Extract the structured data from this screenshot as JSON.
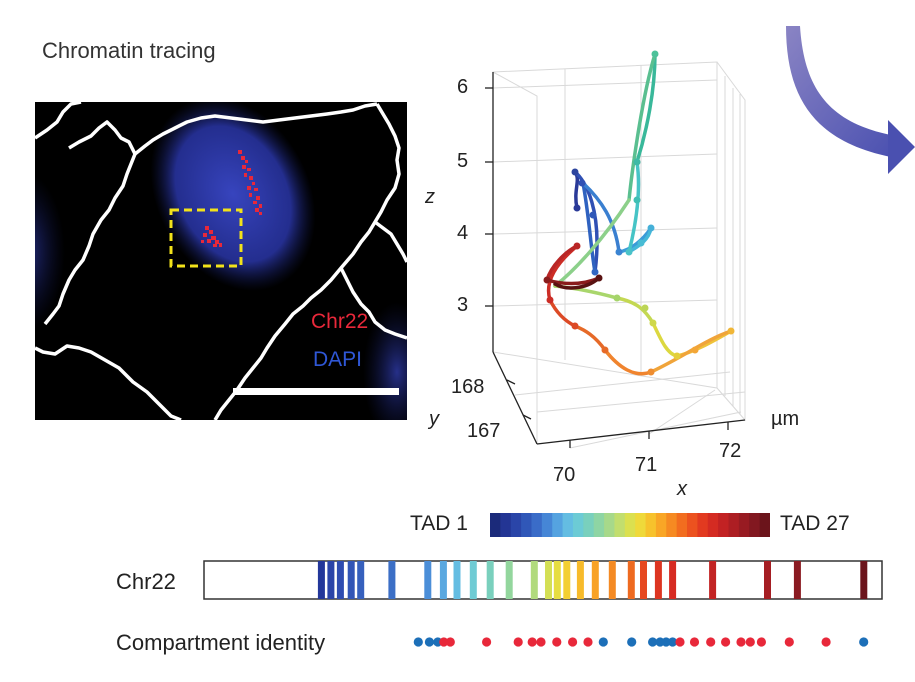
{
  "title": "Chromatin tracing",
  "microscopy": {
    "chr_label": "Chr22",
    "dapi_label": "DAPI",
    "colors": {
      "chr": "#e8283a",
      "dapi": "#2f57d6",
      "roi": "#f2e21a"
    }
  },
  "plot3d": {
    "z_ticks": [
      "6",
      "5",
      "4",
      "3"
    ],
    "y_ticks": [
      "168",
      "167"
    ],
    "x_ticks": [
      "70",
      "71",
      "72"
    ],
    "z_label": "z",
    "y_label": "y",
    "x_label": "x",
    "unit": "µm"
  },
  "colorbar": {
    "left_label": "TAD 1",
    "right_label": "TAD 27",
    "colors": [
      "#1b2a7a",
      "#233594",
      "#2a45a8",
      "#3057b8",
      "#3a6cc8",
      "#4686d6",
      "#55a3e0",
      "#64bde2",
      "#6ccbd5",
      "#79d0bd",
      "#8ed5a4",
      "#a7d98a",
      "#c2de6e",
      "#dbe04f",
      "#efd93a",
      "#f7c22c",
      "#f9a626",
      "#f68a22",
      "#f26d1f",
      "#ec521f",
      "#e23a20",
      "#d42b22",
      "#c22223",
      "#ad1e23",
      "#981b22",
      "#821820",
      "#6b141b"
    ]
  },
  "chromosome": {
    "label": "Chr22",
    "bands": [
      {
        "pos": 0.168,
        "color": "#23379a"
      },
      {
        "pos": 0.182,
        "color": "#2a44a8"
      },
      {
        "pos": 0.196,
        "color": "#2e4cb0"
      },
      {
        "pos": 0.212,
        "color": "#3256b6"
      },
      {
        "pos": 0.226,
        "color": "#3660bd"
      },
      {
        "pos": 0.272,
        "color": "#3c6fc6"
      },
      {
        "pos": 0.325,
        "color": "#4b8ed8"
      },
      {
        "pos": 0.348,
        "color": "#5aa8e0"
      },
      {
        "pos": 0.368,
        "color": "#64bde2"
      },
      {
        "pos": 0.392,
        "color": "#6fcbd4"
      },
      {
        "pos": 0.417,
        "color": "#7ad0bd"
      },
      {
        "pos": 0.445,
        "color": "#93d69d"
      },
      {
        "pos": 0.482,
        "color": "#b1da7d"
      },
      {
        "pos": 0.503,
        "color": "#d4df55"
      },
      {
        "pos": 0.516,
        "color": "#e6dd42"
      },
      {
        "pos": 0.53,
        "color": "#f3cf33"
      },
      {
        "pos": 0.55,
        "color": "#f7bb2b"
      },
      {
        "pos": 0.572,
        "color": "#f8a226"
      },
      {
        "pos": 0.597,
        "color": "#f48a23"
      },
      {
        "pos": 0.625,
        "color": "#ee6a20"
      },
      {
        "pos": 0.643,
        "color": "#e6481f"
      },
      {
        "pos": 0.665,
        "color": "#dd3521"
      },
      {
        "pos": 0.686,
        "color": "#d62b22"
      },
      {
        "pos": 0.745,
        "color": "#c22424"
      },
      {
        "pos": 0.826,
        "color": "#a51e23"
      },
      {
        "pos": 0.87,
        "color": "#8a1a21"
      },
      {
        "pos": 0.968,
        "color": "#6b141b"
      }
    ]
  },
  "compartment": {
    "label": "Compartment identity",
    "colors": {
      "A": "#e8283a",
      "B": "#1c6fb8"
    },
    "dots": [
      {
        "pos": 0.007,
        "c": "B"
      },
      {
        "pos": 0.031,
        "c": "B"
      },
      {
        "pos": 0.049,
        "c": "B"
      },
      {
        "pos": 0.062,
        "c": "A"
      },
      {
        "pos": 0.076,
        "c": "A"
      },
      {
        "pos": 0.154,
        "c": "A"
      },
      {
        "pos": 0.222,
        "c": "A"
      },
      {
        "pos": 0.252,
        "c": "A"
      },
      {
        "pos": 0.271,
        "c": "A"
      },
      {
        "pos": 0.305,
        "c": "A"
      },
      {
        "pos": 0.339,
        "c": "A"
      },
      {
        "pos": 0.372,
        "c": "A"
      },
      {
        "pos": 0.405,
        "c": "B"
      },
      {
        "pos": 0.466,
        "c": "B"
      },
      {
        "pos": 0.511,
        "c": "B"
      },
      {
        "pos": 0.527,
        "c": "B"
      },
      {
        "pos": 0.54,
        "c": "B"
      },
      {
        "pos": 0.554,
        "c": "B"
      },
      {
        "pos": 0.57,
        "c": "A"
      },
      {
        "pos": 0.601,
        "c": "A"
      },
      {
        "pos": 0.636,
        "c": "A"
      },
      {
        "pos": 0.668,
        "c": "A"
      },
      {
        "pos": 0.701,
        "c": "A"
      },
      {
        "pos": 0.721,
        "c": "A"
      },
      {
        "pos": 0.745,
        "c": "A"
      },
      {
        "pos": 0.805,
        "c": "A"
      },
      {
        "pos": 0.884,
        "c": "A"
      },
      {
        "pos": 0.965,
        "c": "B"
      }
    ]
  }
}
